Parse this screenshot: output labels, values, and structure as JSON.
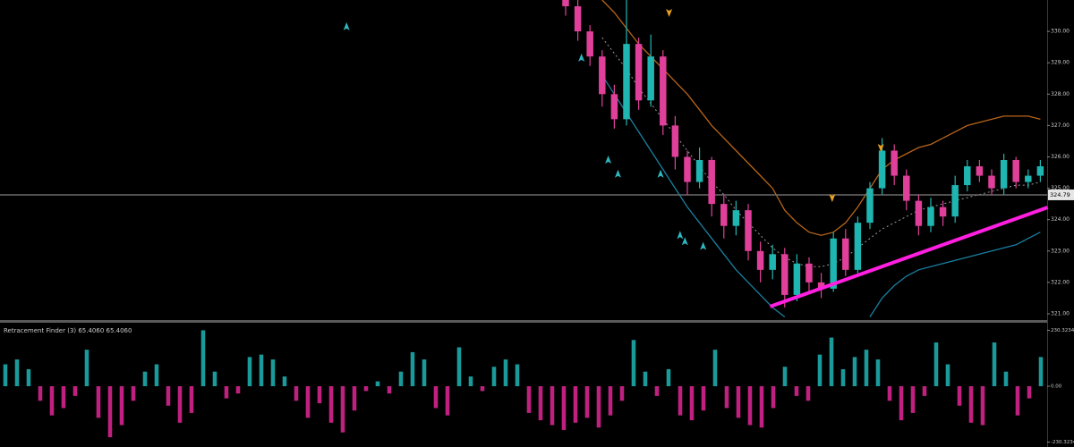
{
  "chart_data": [
    {
      "type": "candlestick",
      "xlim": [
        -46.47,
        39.56
      ],
      "ylim": [
        320.8,
        331.0
      ],
      "yticks": [
        {
          "value": 321,
          "label": "321.00"
        },
        {
          "value": 322,
          "label": "322.00"
        },
        {
          "value": 323,
          "label": "323.00"
        },
        {
          "value": 324,
          "label": "324.00"
        },
        {
          "value": 325,
          "label": "325.00"
        },
        {
          "value": 326,
          "label": "326.00"
        },
        {
          "value": 327,
          "label": "327.00"
        },
        {
          "value": 328,
          "label": "328.00"
        },
        {
          "value": 329,
          "label": "329.00"
        },
        {
          "value": 330,
          "label": "330.00"
        }
      ],
      "up_color": "#1fb5b0",
      "down_color": "#e0409a",
      "open": [
        331.2,
        330.8,
        330.0,
        329.2,
        328.0,
        327.2,
        329.6,
        327.8,
        329.2,
        327.0,
        326.0,
        325.2,
        325.9,
        324.5,
        323.8,
        324.3,
        323.0,
        322.4,
        322.9,
        321.6,
        322.6,
        322.0,
        321.8,
        323.4,
        322.4,
        323.9,
        325.0,
        326.2,
        325.4,
        324.6,
        323.8,
        324.4,
        324.1,
        325.1,
        325.7,
        325.4,
        325.0,
        325.9,
        325.2,
        325.4
      ],
      "high": [
        331.4,
        331.0,
        330.2,
        329.4,
        328.3,
        331.0,
        329.8,
        329.9,
        329.4,
        327.3,
        326.2,
        326.3,
        326.0,
        324.8,
        324.6,
        324.5,
        323.3,
        323.2,
        323.1,
        322.9,
        322.8,
        322.3,
        323.6,
        323.7,
        324.1,
        325.2,
        326.6,
        326.4,
        325.6,
        324.8,
        324.7,
        324.6,
        325.4,
        325.9,
        325.9,
        325.6,
        326.1,
        326.0,
        325.6,
        325.9
      ],
      "low": [
        330.5,
        329.7,
        328.9,
        327.6,
        326.9,
        327.0,
        327.5,
        327.6,
        326.7,
        325.6,
        324.8,
        325.0,
        324.1,
        323.4,
        323.5,
        322.7,
        322.0,
        322.1,
        321.2,
        321.4,
        321.7,
        321.5,
        321.7,
        322.2,
        322.3,
        323.7,
        324.8,
        325.1,
        324.3,
        323.5,
        323.6,
        323.8,
        323.9,
        324.9,
        325.2,
        324.8,
        324.8,
        325.0,
        325.0,
        325.2
      ],
      "close": [
        330.8,
        330.0,
        329.2,
        328.0,
        327.2,
        329.6,
        327.8,
        329.2,
        327.0,
        326.0,
        325.2,
        325.9,
        324.5,
        323.8,
        324.3,
        323.0,
        322.4,
        322.9,
        321.6,
        322.6,
        322.0,
        321.8,
        323.4,
        322.4,
        323.9,
        325.0,
        326.2,
        325.4,
        324.6,
        323.8,
        324.4,
        324.1,
        325.1,
        325.7,
        325.4,
        325.0,
        325.9,
        325.2,
        325.4,
        325.7
      ],
      "bands": [
        {
          "color": "#b8651a",
          "dashed": false,
          "values": [
            null,
            null,
            null,
            331.0,
            330.6,
            330.1,
            329.6,
            329.2,
            328.8,
            328.4,
            328.0,
            327.5,
            327.0,
            326.6,
            326.2,
            325.8,
            325.4,
            325.0,
            324.3,
            323.9,
            323.6,
            323.5,
            323.6,
            323.9,
            324.4,
            325.0,
            325.6,
            325.9,
            326.1,
            326.3,
            326.4,
            326.6,
            326.8,
            327.0,
            327.1,
            327.2,
            327.3,
            327.3,
            327.3,
            327.2
          ]
        },
        {
          "color": "#1a7fa0",
          "dashed": false,
          "values": [
            null,
            null,
            null,
            328.6,
            328.0,
            327.4,
            326.8,
            326.2,
            325.6,
            325.0,
            324.4,
            323.9,
            323.4,
            322.9,
            322.4,
            322.0,
            321.6,
            321.2,
            320.9,
            null,
            null,
            null,
            null,
            null,
            null,
            320.9,
            321.5,
            321.9,
            322.2,
            322.4,
            322.5,
            322.6,
            322.7,
            322.8,
            322.9,
            323.0,
            323.1,
            323.2,
            323.4,
            323.6
          ]
        },
        {
          "color": "#9a9a9a",
          "dashed": true,
          "values": [
            null,
            null,
            null,
            329.8,
            329.3,
            328.8,
            328.2,
            327.7,
            327.2,
            326.7,
            326.2,
            325.7,
            325.2,
            324.8,
            324.3,
            323.9,
            323.5,
            323.1,
            322.8,
            322.6,
            322.5,
            322.5,
            322.6,
            322.8,
            323.1,
            323.4,
            323.7,
            323.9,
            324.1,
            324.3,
            324.4,
            324.5,
            324.6,
            324.7,
            324.8,
            324.9,
            325.0,
            325.1,
            325.1,
            325.2
          ]
        }
      ],
      "current_price": 324.79,
      "trendline": {
        "start": [
          16.8,
          321.23
        ],
        "end": [
          39.6,
          324.39
        ],
        "color": "#ff1fe0"
      },
      "up_arrows": [
        [
          -18.0,
          330.15
        ],
        [
          1.3,
          329.15
        ],
        [
          3.5,
          325.9
        ],
        [
          4.3,
          325.45
        ],
        [
          7.8,
          325.45
        ],
        [
          9.4,
          323.5
        ],
        [
          9.8,
          323.3
        ],
        [
          11.3,
          323.15
        ]
      ],
      "down_arrows": [
        [
          8.5,
          330.6
        ],
        [
          21.9,
          324.7
        ],
        [
          25.9,
          326.3
        ]
      ],
      "up_arrow_color": "#2fb8c0",
      "down_arrow_color": "#e8a020"
    },
    {
      "type": "bar",
      "title": "Retracement Finder (3) 65.4060 65.4060",
      "xlim": [
        -0.46,
        89.54
      ],
      "ylim": [
        -250,
        250
      ],
      "yticks": [
        {
          "value": 230,
          "label": "230.3234"
        },
        {
          "value": 0,
          "label": "0.00"
        },
        {
          "value": -230,
          "label": "-230.3234"
        }
      ],
      "pos_color": "#1a9a9a",
      "neg_color": "#c02080",
      "values": [
        90,
        110,
        70,
        -60,
        -120,
        -90,
        -40,
        150,
        -130,
        -210,
        -160,
        -60,
        60,
        90,
        -80,
        -150,
        -110,
        230,
        60,
        -50,
        -30,
        120,
        130,
        110,
        40,
        -60,
        -130,
        -70,
        -150,
        -190,
        -100,
        -20,
        20,
        -30,
        60,
        140,
        110,
        -90,
        -120,
        160,
        40,
        -20,
        80,
        110,
        90,
        -110,
        -140,
        -160,
        -180,
        -150,
        -130,
        -170,
        -120,
        -60,
        190,
        60,
        -40,
        70,
        -120,
        -140,
        -100,
        150,
        -90,
        -130,
        -160,
        -170,
        -90,
        80,
        -40,
        -60,
        130,
        200,
        70,
        120,
        150,
        110,
        -60,
        -140,
        -110,
        -40,
        180,
        90,
        -80,
        -150,
        -160,
        180,
        60,
        -120,
        -50,
        120
      ]
    }
  ]
}
